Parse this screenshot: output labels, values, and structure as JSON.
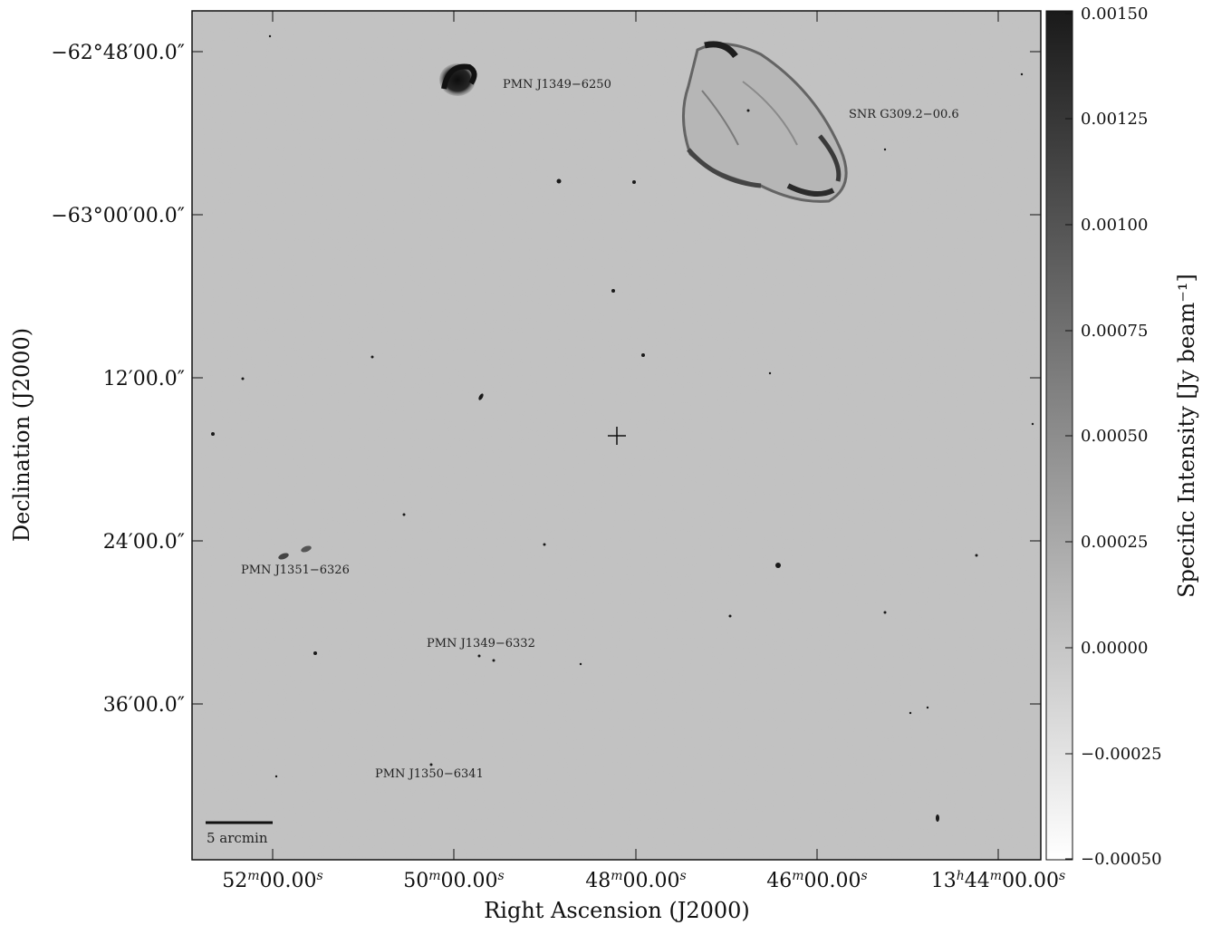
{
  "figure": {
    "xlabel": "Right Ascension (J2000)",
    "ylabel": "Declination (J2000)",
    "x_ticks": [
      {
        "text": "52",
        "unit": "m",
        "rest": "00.00",
        "sec": "s"
      },
      {
        "text": "50",
        "unit": "m",
        "rest": "00.00",
        "sec": "s"
      },
      {
        "text": "48",
        "unit": "m",
        "rest": "00.00",
        "sec": "s"
      },
      {
        "text": "46",
        "unit": "m",
        "rest": "00.00",
        "sec": "s"
      },
      {
        "text": "13",
        "unit": "h",
        "rest": "44",
        "unit2": "m",
        "rest2": "00.00",
        "sec": "s"
      }
    ],
    "y_ticks": [
      "−62°48′00.0″",
      "−63°00′00.0″",
      "12′00.0″",
      "24′00.0″",
      "36′00.0″"
    ],
    "scalebar_label": "5 arcmin",
    "sources": [
      {
        "name": "PMN J1349−6250"
      },
      {
        "name": "SNR G309.2−00.6"
      },
      {
        "name": "PMN J1351−6326"
      },
      {
        "name": "PMN J1349−6332"
      },
      {
        "name": "PMN J1350−6341"
      }
    ]
  },
  "colorbar": {
    "label": "Specific Intensity [Jy beam⁻¹]",
    "ticks": [
      "0.00150",
      "0.00125",
      "0.00100",
      "0.00075",
      "0.00050",
      "0.00025",
      "0.00000",
      "−0.00025",
      "−0.00050"
    ],
    "vmin": -0.0005,
    "vmax": 0.0015,
    "colormap": "gray_r",
    "colors": {
      "high": "#1a1a1a",
      "low": "#ffffff"
    }
  }
}
